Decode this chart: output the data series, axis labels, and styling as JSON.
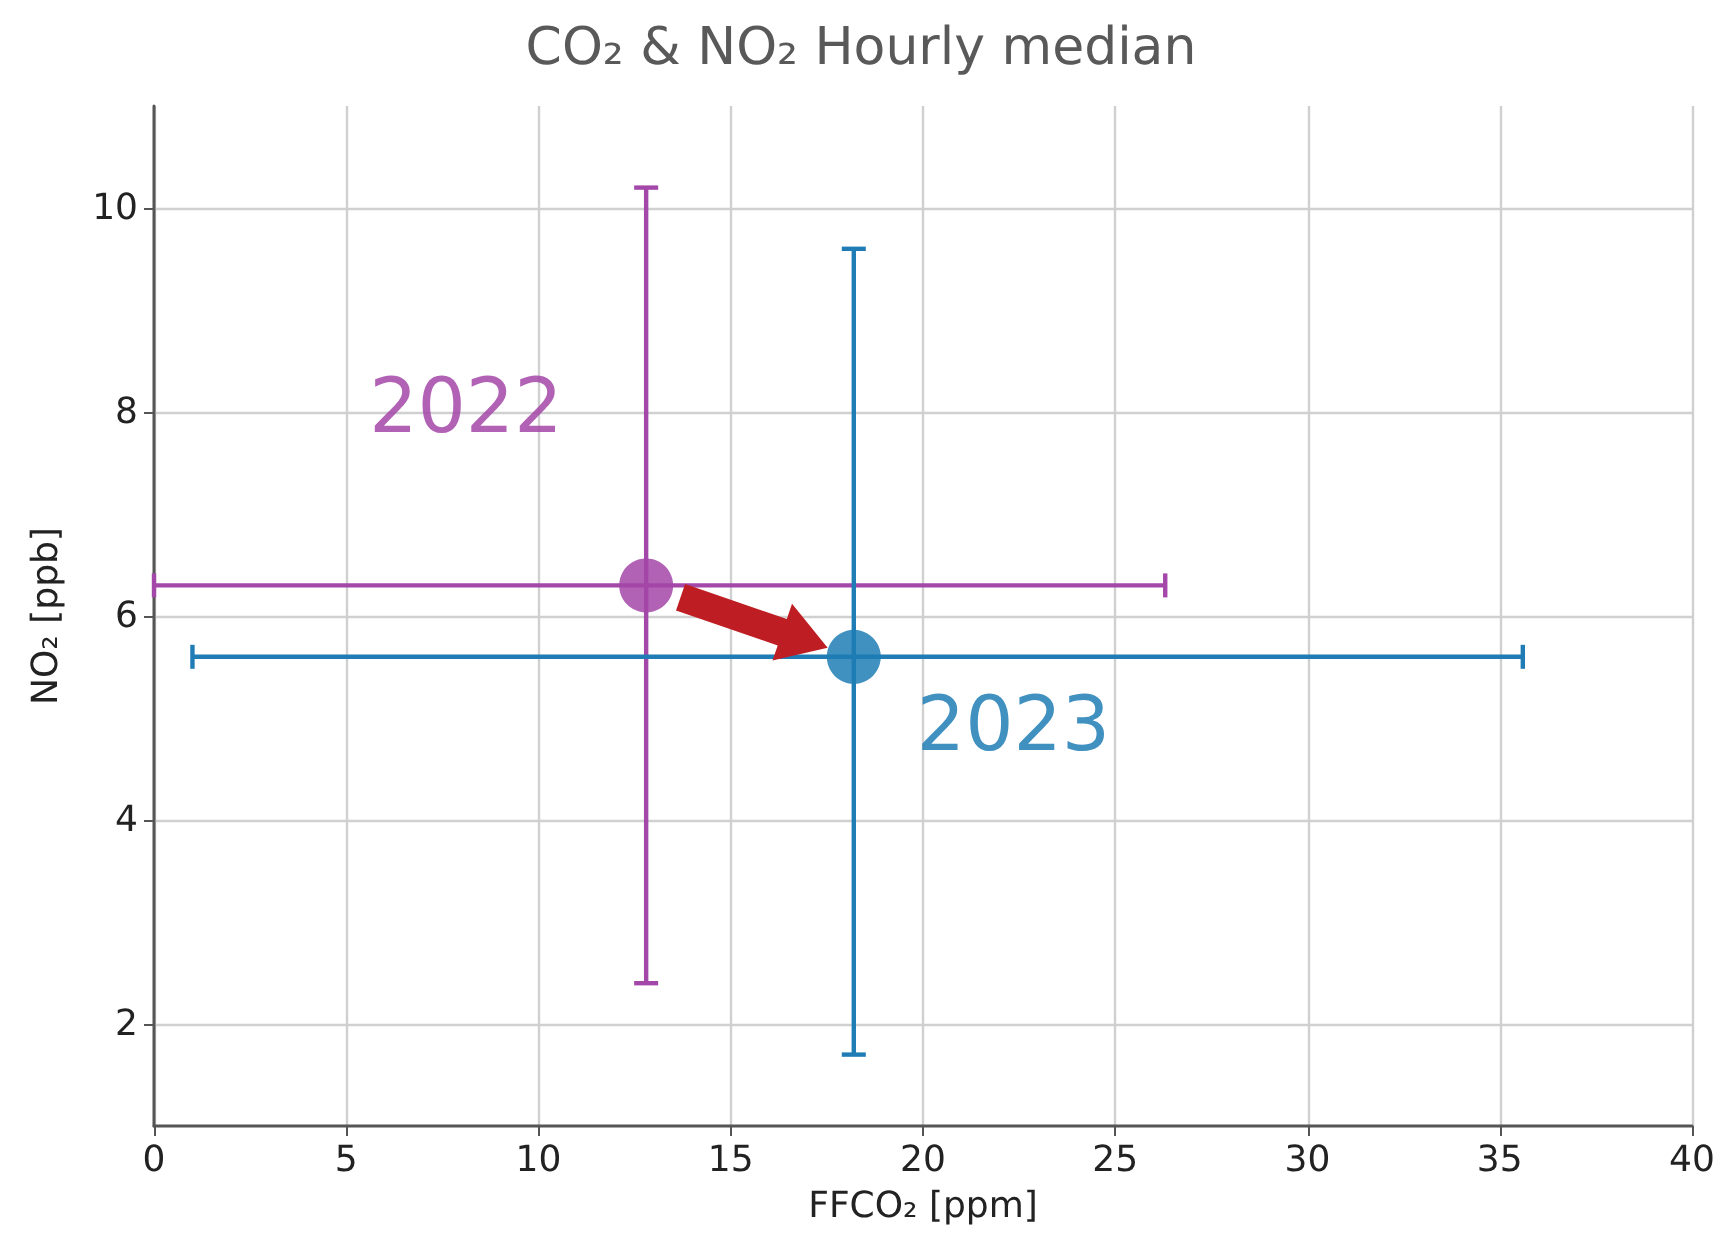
{
  "chart_data": {
    "type": "scatter",
    "title": "CO₂ & NO₂ Hourly median",
    "xlabel": "FFCO₂ [ppm]",
    "ylabel": "NO₂ [ppb]",
    "xlim": [
      0,
      40
    ],
    "xticks": [
      0,
      5,
      10,
      15,
      20,
      25,
      30,
      35,
      40
    ],
    "ylim": [
      1,
      11
    ],
    "yticks": [
      2,
      4,
      6,
      8,
      10
    ],
    "grid": true,
    "marker": "circle",
    "series": [
      {
        "name": "2022",
        "color": "#a347a8",
        "x": [
          12.8
        ],
        "values": [
          6.3
        ],
        "errors": [
          [
            2.4,
            10.2
          ]
        ],
        "xerrors": [
          [
            0,
            26.3
          ]
        ]
      },
      {
        "name": "2023",
        "color": "#1f7cb5",
        "x": [
          18.2
        ],
        "values": [
          5.6
        ],
        "errors": [
          [
            1.7,
            9.6
          ]
        ],
        "xerrors": [
          [
            1.0,
            35.6
          ]
        ]
      }
    ]
  }
}
